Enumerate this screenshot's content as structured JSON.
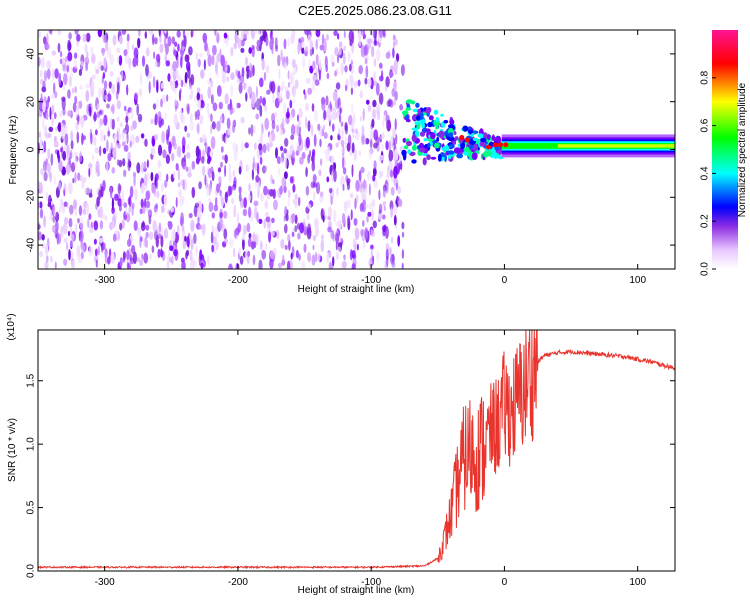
{
  "title": "C2E5.2025.086.23.08.G11",
  "chart_data": [
    {
      "type": "heatmap",
      "xlabel": "Height of straight line (km)",
      "ylabel": "Frequency (Hz)",
      "xlim": [
        -350,
        128
      ],
      "ylim": [
        -50,
        50
      ],
      "x_ticks": [
        -300,
        -200,
        -100,
        0,
        100
      ],
      "y_ticks": [
        -40,
        -20,
        0,
        20,
        40
      ],
      "colorbar": {
        "label": "Normalized spectral amplitude",
        "range": [
          0,
          1
        ],
        "ticks": [
          "0.0",
          "0.2",
          "0.4",
          "0.6",
          "0.8"
        ]
      },
      "features": {
        "noise_region_x": [
          -350,
          -76
        ],
        "transition_region_x": [
          -76,
          -2
        ],
        "carrier_region_x": [
          -2,
          128
        ],
        "carrier_frequency_hz": 1.5,
        "carrier_width_hz": 6
      },
      "grid": false,
      "colors": [
        "#ffffff",
        "#8a2be2",
        "#0000ff",
        "#00ffff",
        "#00ff00",
        "#ffff00",
        "#ff0000",
        "#ff1493"
      ]
    },
    {
      "type": "line",
      "xlabel": "Height of straight line (km)",
      "ylabel": "SNR (10 * v/v)",
      "y_multiplier": "(x10⁴)",
      "xlim": [
        -350,
        128
      ],
      "ylim": [
        0,
        1.9
      ],
      "x_ticks": [
        -300,
        -200,
        -100,
        0,
        100
      ],
      "y_ticks": [
        "0.0",
        "0.5",
        "1.0",
        "1.5"
      ],
      "grid": false,
      "series": [
        {
          "color": "#e8342d",
          "x": [
            -350,
            -300,
            -250,
            -200,
            -150,
            -100,
            -60,
            -50,
            -45,
            -40,
            -35,
            -30,
            -25,
            -20,
            -15,
            -10,
            -5,
            0,
            5,
            10,
            15,
            20,
            25,
            30,
            40,
            50,
            60,
            70,
            80,
            90,
            100,
            110,
            120,
            128
          ],
          "y": [
            0.03,
            0.03,
            0.03,
            0.03,
            0.03,
            0.03,
            0.04,
            0.1,
            0.25,
            0.45,
            0.7,
            0.9,
            0.95,
            0.9,
            1.0,
            1.1,
            1.15,
            1.3,
            1.25,
            1.35,
            1.45,
            1.55,
            1.65,
            1.7,
            1.72,
            1.73,
            1.72,
            1.71,
            1.7,
            1.69,
            1.67,
            1.65,
            1.62,
            1.6
          ]
        }
      ]
    }
  ]
}
